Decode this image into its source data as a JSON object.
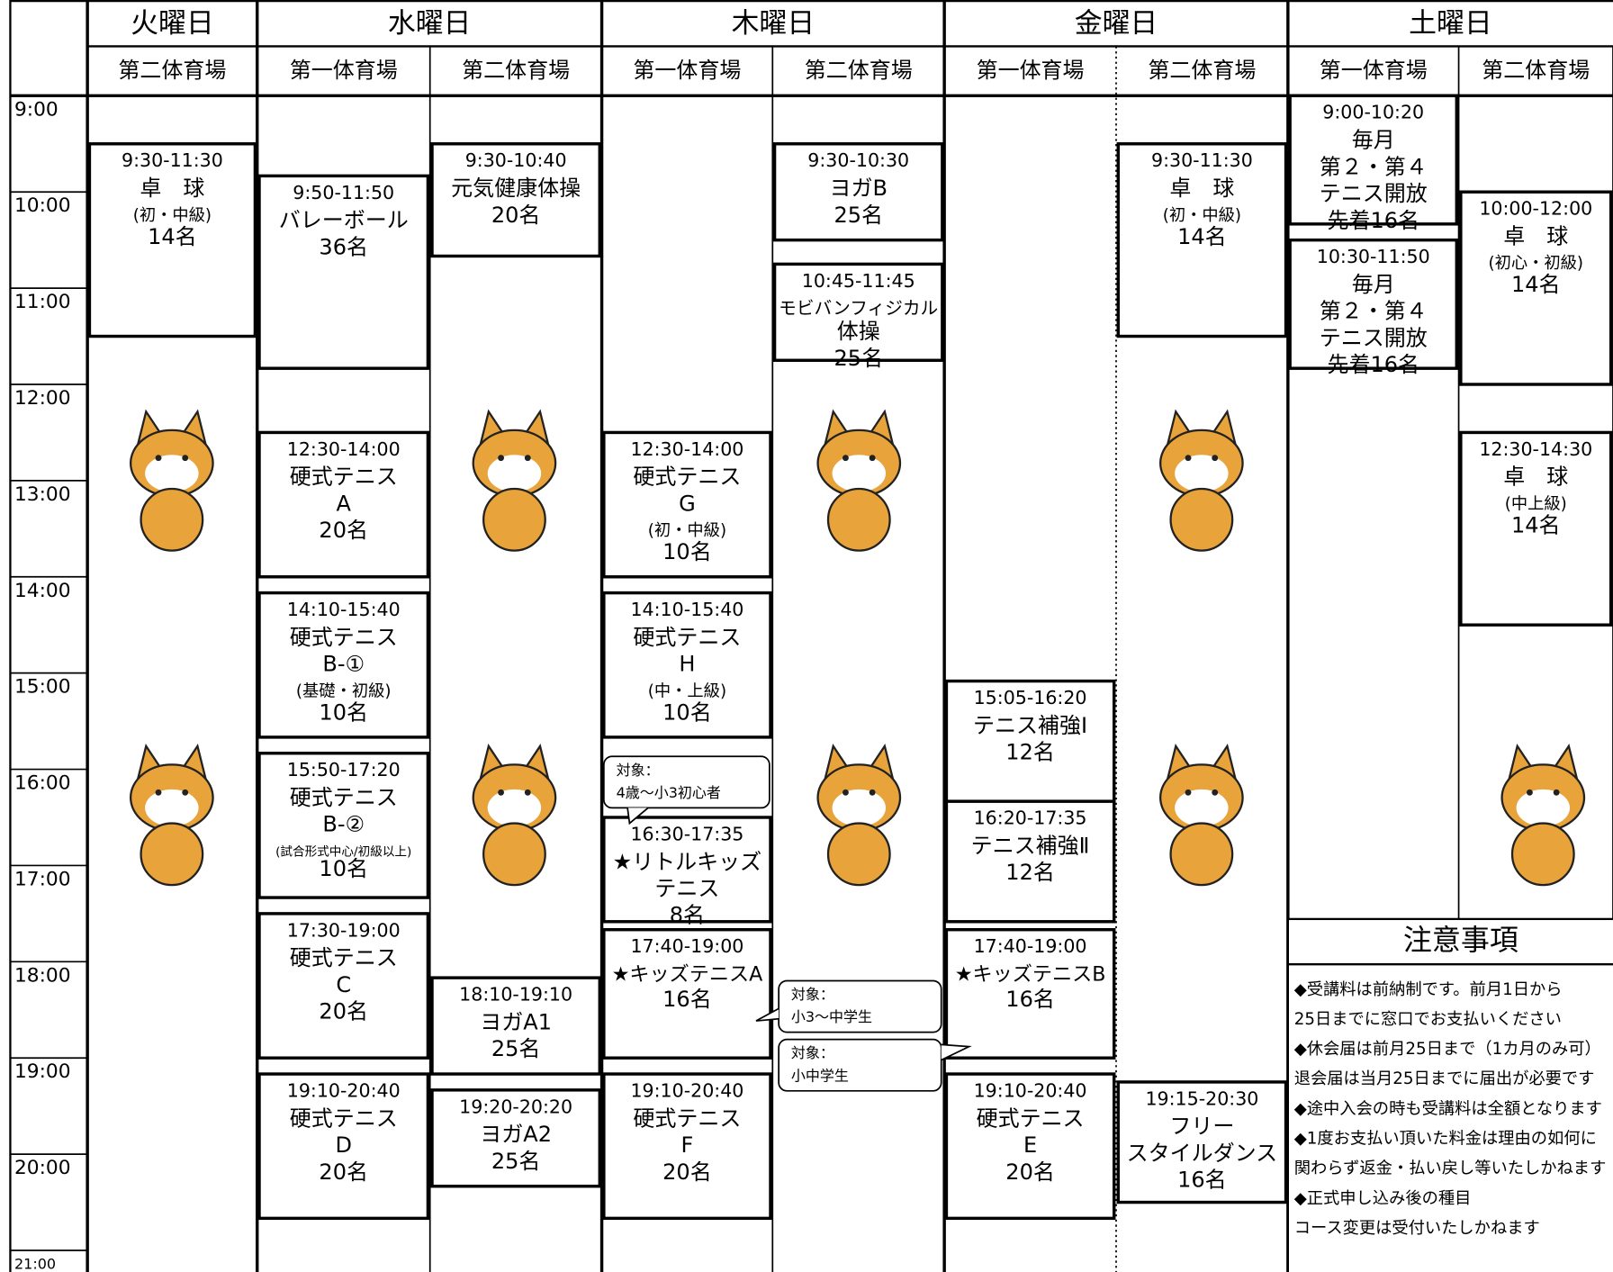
{
  "header": {
    "corner": "",
    "days": [
      {
        "name": "火曜日",
        "venues": [
          {
            "name": "第二体育場",
            "classes": [
              {
                "time": "9:30-11:30",
                "lines": [
                  "卓　球",
                  "(初・中級)",
                  "14名"
                ]
              }
            ],
            "bubbles": []
          }
        ]
      },
      {
        "name": "水曜日",
        "venues": [
          {
            "name": "第一体育場",
            "classes": [
              {
                "time": "9:50-11:50",
                "lines": [
                  "バレーボール",
                  "36名"
                ]
              },
              {
                "time": "12:30-14:00",
                "lines": [
                  "硬式テニス",
                  "A",
                  "20名"
                ]
              },
              {
                "time": "14:10-15:40",
                "lines": [
                  "硬式テニス",
                  "B-①",
                  "(基礎・初級)",
                  "10名"
                ]
              },
              {
                "time": "15:50-17:20",
                "lines": [
                  "硬式テニス",
                  "B-②",
                  "(試合形式中心/初級以上)",
                  "10名"
                ]
              },
              {
                "time": "17:30-19:00",
                "lines": [
                  "硬式テニス",
                  "C",
                  "20名"
                ]
              },
              {
                "time": "19:10-20:40",
                "lines": [
                  "硬式テニス",
                  "D",
                  "20名"
                ]
              }
            ],
            "bubbles": []
          },
          {
            "name": "第二体育場",
            "classes": [
              {
                "time": "9:30-10:40",
                "lines": [
                  "元気健康体操",
                  "20名"
                ]
              },
              {
                "time": "18:10-19:10",
                "lines": [
                  "ヨガA1",
                  "25名"
                ]
              },
              {
                "time": "19:20-20:20",
                "lines": [
                  "ヨガA2",
                  "25名"
                ]
              }
            ],
            "bubbles": []
          }
        ]
      },
      {
        "name": "木曜日",
        "venues": [
          {
            "name": "第一体育場",
            "classes": [
              {
                "time": "12:30-14:00",
                "lines": [
                  "硬式テニス",
                  "G",
                  "(初・中級)",
                  "10名"
                ]
              },
              {
                "time": "14:10-15:40",
                "lines": [
                  "硬式テニス",
                  "H",
                  "(中・上級)",
                  "10名"
                ]
              },
              {
                "time": "16:30-17:35",
                "lines": [
                  "★リトルキッズ",
                  "テニス",
                  "8名"
                ]
              },
              {
                "time": "17:40-19:00",
                "lines": [
                  "★キッズテニスA",
                  "16名"
                ]
              },
              {
                "time": "19:10-20:40",
                "lines": [
                  "硬式テニス",
                  "F",
                  "20名"
                ]
              }
            ],
            "bubbles": [
              {
                "lines": [
                  "対象：",
                  "4歳～小3初心者"
                ]
              }
            ]
          },
          {
            "name": "第二体育場",
            "classes": [
              {
                "time": "9:30-10:30",
                "lines": [
                  "ヨガB",
                  "25名"
                ]
              },
              {
                "time": "10:45-11:45",
                "lines": [
                  "モビバンフィジカル",
                  "体操",
                  "25名"
                ]
              }
            ],
            "bubbles": [
              {
                "lines": [
                  "対象：",
                  "小3～中学生"
                ]
              },
              {
                "lines": [
                  "対象：",
                  "小中学生"
                ]
              }
            ]
          }
        ]
      },
      {
        "name": "金曜日",
        "venues": [
          {
            "name": "第一体育場",
            "classes": [
              {
                "time": "15:05-16:20",
                "lines": [
                  "テニス補強Ⅰ",
                  "12名"
                ]
              },
              {
                "time": "16:20-17:35",
                "lines": [
                  "テニス補強Ⅱ",
                  "12名"
                ]
              },
              {
                "time": "17:40-19:00",
                "lines": [
                  "★キッズテニスB",
                  "16名"
                ]
              },
              {
                "time": "19:10-20:40",
                "lines": [
                  "硬式テニス",
                  "E",
                  "20名"
                ]
              }
            ],
            "bubbles": []
          },
          {
            "name": "第二体育場",
            "classes": [
              {
                "time": "9:30-11:30",
                "lines": [
                  "卓　球",
                  "(初・中級)",
                  "14名"
                ]
              },
              {
                "time": "19:15-20:30",
                "lines": [
                  "フリー",
                  "スタイルダンス",
                  "16名"
                ]
              }
            ],
            "bubbles": []
          }
        ]
      },
      {
        "name": "土曜日",
        "venues": [
          {
            "name": "第一体育場",
            "classes": [
              {
                "time": "9:00-10:20",
                "lines": [
                  "毎月",
                  "第２・第４",
                  "テニス開放",
                  "先着16名"
                ]
              },
              {
                "time": "10:30-11:50",
                "lines": [
                  "毎月",
                  "第２・第４",
                  "テニス開放",
                  "先着16名"
                ]
              }
            ],
            "bubbles": []
          },
          {
            "name": "第二体育場",
            "classes": [
              {
                "time": "10:00-12:00",
                "lines": [
                  "卓　球",
                  "(初心・初級)",
                  "14名"
                ]
              },
              {
                "time": "12:30-14:30",
                "lines": [
                  "卓　球",
                  "(中上級)",
                  "14名"
                ]
              }
            ],
            "bubbles": []
          }
        ]
      }
    ]
  },
  "times": [
    "9:00",
    "10:00",
    "11:00",
    "12:00",
    "13:00",
    "14:00",
    "15:00",
    "16:00",
    "17:00",
    "18:00",
    "19:00",
    "20:00",
    "21:00"
  ],
  "notice": {
    "title": "注意事項",
    "lines": [
      "◆受講料は前納制です。前月1日から",
      "25日までに窓口でお支払いください",
      "◆休会届は前月25日まで（1カ月のみ可）",
      "退会届は当月25日までに届出が必要です",
      "◆途中入会の時も受講料は全額となります",
      "◆1度お支払い頂いた料金は理由の如何に",
      "関わらず返金・払い戻し等いたしかねます",
      "◆正式申し込み後の種目",
      "コース変更は受付いたしかねます"
    ]
  }
}
